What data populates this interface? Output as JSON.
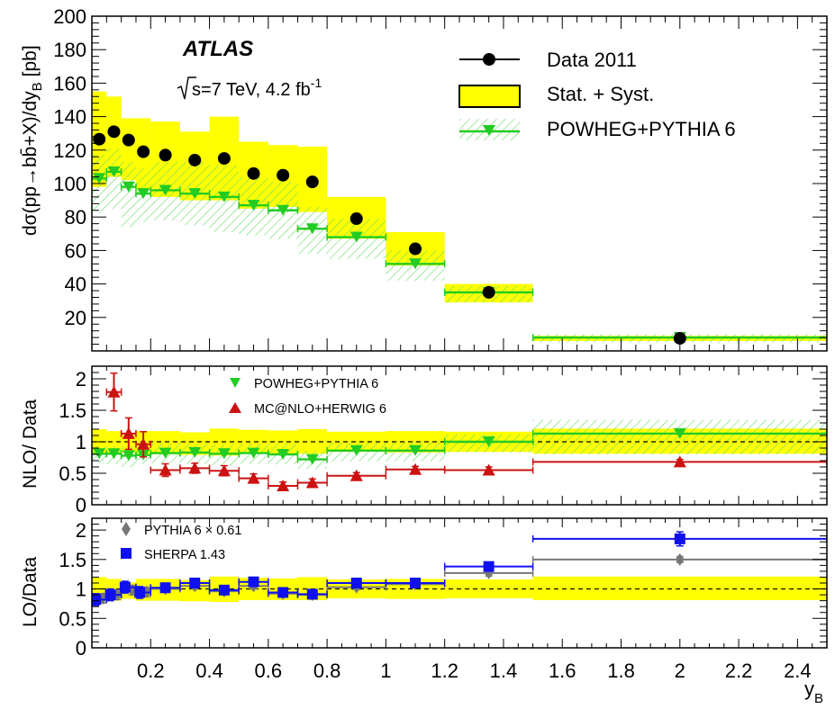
{
  "chart_data": [
    {
      "type": "scatter",
      "panel": "main",
      "ylabel": "dσ(pp→bb̄+X)/dy_B [pb]",
      "ylim": [
        0,
        200
      ],
      "xlim": [
        0,
        2.5
      ],
      "yticks": [
        "20",
        "40",
        "60",
        "80",
        "100",
        "120",
        "140",
        "160",
        "180",
        "200"
      ],
      "annotations": {
        "experiment": "ATLAS",
        "energy": "√s=7 TeV, 4.2 fb⁻¹"
      },
      "legend_placement": "top-right",
      "legend": {
        "data": "Data 2011",
        "band": "Stat. + Syst.",
        "mc": "POWHEG+PYTHIA 6"
      },
      "bins": [
        [
          0,
          0.05
        ],
        [
          0.05,
          0.1
        ],
        [
          0.1,
          0.15
        ],
        [
          0.15,
          0.2
        ],
        [
          0.2,
          0.3
        ],
        [
          0.3,
          0.4
        ],
        [
          0.4,
          0.5
        ],
        [
          0.5,
          0.6
        ],
        [
          0.6,
          0.7
        ],
        [
          0.7,
          0.8
        ],
        [
          0.8,
          1.0
        ],
        [
          1.0,
          1.2
        ],
        [
          1.2,
          1.5
        ],
        [
          1.5,
          2.5
        ]
      ],
      "series": [
        {
          "name": "Data 2011",
          "values": [
            126.5,
            131,
            126,
            119,
            117,
            114,
            115,
            106,
            105,
            101,
            79,
            61,
            35,
            7.5
          ],
          "band": [
            [
              98,
              155
            ],
            [
              104,
              152
            ],
            [
              102,
              139
            ],
            [
              96,
              139
            ],
            [
              92,
              137
            ],
            [
              90,
              131
            ],
            [
              90,
              140
            ],
            [
              85,
              125
            ],
            [
              86,
              123
            ],
            [
              83,
              122
            ],
            [
              67,
              92
            ],
            [
              51,
              71
            ],
            [
              29,
              40
            ],
            [
              6,
              9
            ]
          ]
        },
        {
          "name": "POWHEG+PYTHIA 6",
          "values": [
            103,
            107,
            98,
            94,
            96,
            94,
            92,
            87,
            84,
            73,
            68,
            52,
            35,
            8
          ],
          "band": [
            [
              82,
              117
            ],
            [
              85,
              121
            ],
            [
              74,
              113
            ],
            [
              77,
              109
            ],
            [
              78,
              113
            ],
            [
              75,
              113
            ],
            [
              71,
              111
            ],
            [
              69,
              104
            ],
            [
              67,
              101
            ],
            [
              58,
              86
            ],
            [
              55,
              79
            ],
            [
              42,
              60
            ],
            [
              29,
              39
            ],
            [
              5,
              10
            ]
          ]
        }
      ]
    },
    {
      "type": "scatter",
      "panel": "nlo_ratio",
      "ylabel": "NLO/ Data",
      "ylim": [
        0,
        2.2
      ],
      "yticks": [
        "0",
        "0.5",
        "1",
        "1.5",
        "2"
      ],
      "reference_line": 1,
      "band": [
        [
          0.8,
          1.2
        ],
        [
          0.8,
          1.17
        ],
        [
          0.83,
          1.11
        ],
        [
          0.8,
          1.17
        ],
        [
          0.8,
          1.17
        ],
        [
          0.79,
          1.15
        ],
        [
          0.78,
          1.21
        ],
        [
          0.81,
          1.19
        ],
        [
          0.81,
          1.18
        ],
        [
          0.81,
          1.2
        ],
        [
          0.84,
          1.16
        ],
        [
          0.83,
          1.17
        ],
        [
          0.84,
          1.16
        ],
        [
          0.81,
          1.21
        ]
      ],
      "series": [
        {
          "name": "POWHEG+PYTHIA 6",
          "values": [
            0.81,
            0.81,
            0.78,
            0.79,
            0.82,
            0.83,
            0.81,
            0.82,
            0.8,
            0.72,
            0.86,
            0.86,
            1.0,
            1.13
          ],
          "band": [
            [
              0.66,
              0.93
            ],
            [
              0.64,
              0.92
            ],
            [
              0.6,
              0.92
            ],
            [
              0.65,
              0.91
            ],
            [
              0.66,
              0.97
            ],
            [
              0.65,
              0.98
            ],
            [
              0.62,
              0.96
            ],
            [
              0.65,
              0.97
            ],
            [
              0.64,
              0.97
            ],
            [
              0.57,
              0.86
            ],
            [
              0.69,
              0.99
            ],
            [
              0.69,
              1.0
            ],
            [
              0.83,
              1.12
            ],
            [
              0.8,
              1.35
            ]
          ]
        },
        {
          "name": "MC@NLO+HERWIG 6",
          "values": [
            1.79,
            1.13,
            0.96,
            0.55,
            0.58,
            0.54,
            0.42,
            0.3,
            0.35,
            0.46,
            0.56,
            0.55,
            0.68
          ],
          "x": [
            0.075,
            0.125,
            0.175,
            0.25,
            0.35,
            0.45,
            0.55,
            0.65,
            0.75,
            0.9,
            1.1,
            1.35,
            2.0
          ],
          "xerr": [
            [
              0.05,
              0.1
            ],
            [
              0.1,
              0.15
            ],
            [
              0.15,
              0.2
            ],
            [
              0.2,
              0.3
            ],
            [
              0.3,
              0.4
            ],
            [
              0.4,
              0.5
            ],
            [
              0.5,
              0.6
            ],
            [
              0.6,
              0.7
            ],
            [
              0.7,
              0.8
            ],
            [
              0.8,
              1.0
            ],
            [
              1.0,
              1.2
            ],
            [
              1.2,
              1.5
            ],
            [
              1.5,
              2.5
            ]
          ],
          "yerr": [
            0.3,
            0.25,
            0.2,
            0.1,
            0.08,
            0.08,
            0.07,
            0.06,
            0.06,
            0.05,
            0.05,
            0.05,
            0.04
          ]
        }
      ]
    },
    {
      "type": "scatter",
      "panel": "lo_ratio",
      "ylabel": "LO/Data",
      "xlabel": "y_B",
      "ylim": [
        0,
        2.2
      ],
      "xticks": [
        "0.2",
        "0.4",
        "0.6",
        "0.8",
        "1",
        "1.2",
        "1.4",
        "1.6",
        "1.8",
        "2",
        "2.2",
        "2.4"
      ],
      "yticks": [
        "0",
        "0.5",
        "1",
        "1.5",
        "2"
      ],
      "reference_line": 1,
      "band": [
        [
          0.8,
          1.2
        ],
        [
          0.8,
          1.17
        ],
        [
          0.83,
          1.11
        ],
        [
          0.8,
          1.17
        ],
        [
          0.8,
          1.17
        ],
        [
          0.79,
          1.15
        ],
        [
          0.78,
          1.21
        ],
        [
          0.81,
          1.19
        ],
        [
          0.81,
          1.18
        ],
        [
          0.81,
          1.2
        ],
        [
          0.84,
          1.16
        ],
        [
          0.83,
          1.17
        ],
        [
          0.84,
          1.16
        ],
        [
          0.81,
          1.21
        ]
      ],
      "series": [
        {
          "name": "PYTHIA 6 × 0.61",
          "values": [
            0.84,
            0.9,
            0.98,
            0.95,
            1.0,
            1.05,
            0.96,
            1.05,
            0.92,
            0.9,
            1.03,
            1.08,
            1.27,
            1.5
          ],
          "yerr": [
            0.08,
            0.08,
            0.08,
            0.08,
            0.05,
            0.05,
            0.05,
            0.05,
            0.04,
            0.04,
            0.04,
            0.04,
            0.05,
            0.05
          ]
        },
        {
          "name": "SHERPA 1.43",
          "values": [
            0.82,
            0.9,
            1.03,
            0.94,
            1.02,
            1.1,
            0.98,
            1.12,
            0.94,
            0.91,
            1.1,
            1.1,
            1.38,
            1.85
          ],
          "yerr": [
            0.1,
            0.1,
            0.1,
            0.1,
            0.06,
            0.06,
            0.06,
            0.06,
            0.05,
            0.05,
            0.05,
            0.05,
            0.07,
            0.12
          ]
        }
      ]
    }
  ],
  "legend_labels": {
    "data": "Data 2011",
    "band": "Stat. + Syst.",
    "powheg": "POWHEG+PYTHIA 6",
    "powheg_small": "POWHEG+PYTHIA 6",
    "mcnlo": "MC@NLO+HERWIG 6",
    "pythia": "PYTHIA 6 × 0.61",
    "sherpa": "SHERPA 1.43"
  },
  "annotations": {
    "experiment": "ATLAS",
    "energy_prefix": "s=7 TeV, 4.2 fb",
    "energy_sup": "-1"
  },
  "axis_titles": {
    "main_y": "dσ(pp→bb̄+X)/dy",
    "main_y_sub": "B",
    "main_y_unit": "[pb]",
    "nlo_y": "NLO/ Data",
    "lo_y": "LO/Data",
    "x": "y",
    "x_sub": "B"
  },
  "colors": {
    "band": "#ffff00",
    "data": "#000000",
    "powheg": "#22cc22",
    "hatch": "#66dd66",
    "mcnlo": "#cc1111",
    "pythia": "#777777",
    "sherpa": "#1010ee"
  }
}
